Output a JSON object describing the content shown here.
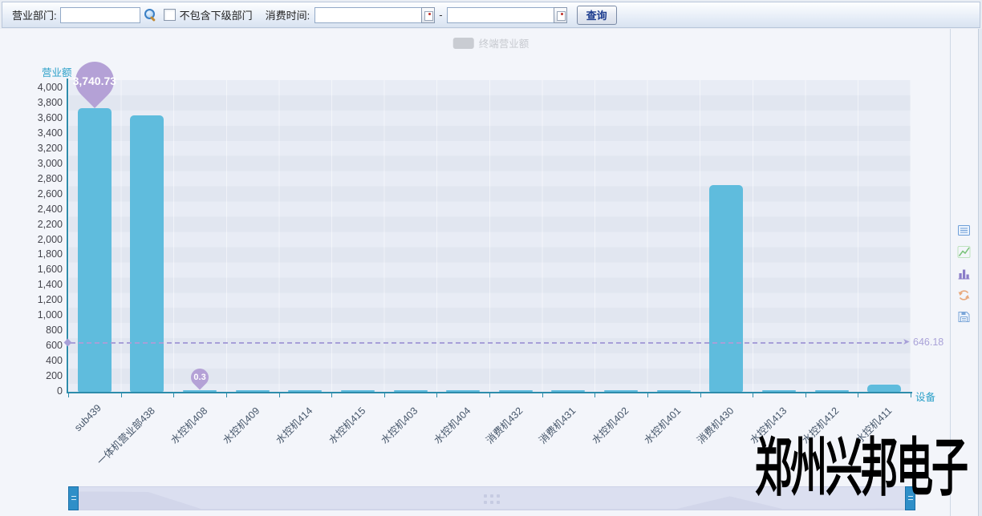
{
  "toolbar": {
    "dept_label": "营业部门:",
    "dept_value": "",
    "exclude_label": "不包含下级部门",
    "exclude_checked": false,
    "time_label": "消费时间:",
    "time_from": "",
    "time_to": "",
    "range_separator": "-",
    "query_label": "查询"
  },
  "legend": {
    "label": "终端营业额",
    "state": "unselected",
    "disabled_color": "#c9ccd2"
  },
  "chart_data": {
    "type": "bar",
    "series_name": "终端营业额",
    "y_axis_name": "营业额",
    "x_axis_name": "设备",
    "categories": [
      "sub439",
      "一体机营业部438",
      "水控机408",
      "水控机409",
      "水控机414",
      "水控机415",
      "水控机403",
      "水控机404",
      "消费机432",
      "消费机431",
      "水控机402",
      "水控机401",
      "消费机430",
      "水控机413",
      "水控机412",
      "水控机411"
    ],
    "values": [
      3740.73,
      3641.8,
      0.3,
      10.3,
      12.6,
      14.2,
      9.8,
      11.5,
      16.8,
      14.9,
      12.1,
      9.6,
      2723.46,
      12.4,
      13.7,
      94.73
    ],
    "ylim": [
      0,
      4000
    ],
    "ytick_step": 200,
    "y_ticks": [
      "0",
      "200",
      "400",
      "600",
      "800",
      "1,000",
      "1,200",
      "1,400",
      "1,600",
      "1,800",
      "2,000",
      "2,200",
      "2,400",
      "2,600",
      "2,800",
      "3,000",
      "3,200",
      "3,400",
      "3,600",
      "3,800",
      "4,000"
    ],
    "grid": true,
    "legend_position": "top-center",
    "bar_color": "#5fbcdd",
    "axis_color": "#2e8cab",
    "pin_color": "#b4a1d6",
    "avg_line_color": "#a79fd8",
    "mark_max": {
      "label": "3,740.73",
      "numeric": 3740.73,
      "category": "sub439"
    },
    "mark_min": {
      "label": "0.3",
      "numeric": 0.3,
      "category": "水控机408"
    },
    "mark_avg": {
      "label": "646.18",
      "numeric": 646.18
    }
  },
  "toolbox": {
    "icons": [
      {
        "name": "data-view"
      },
      {
        "name": "switch-to-line"
      },
      {
        "name": "switch-to-bar"
      },
      {
        "name": "restore"
      },
      {
        "name": "save-as-image"
      }
    ]
  },
  "watermark": "郑州兴邦电子"
}
